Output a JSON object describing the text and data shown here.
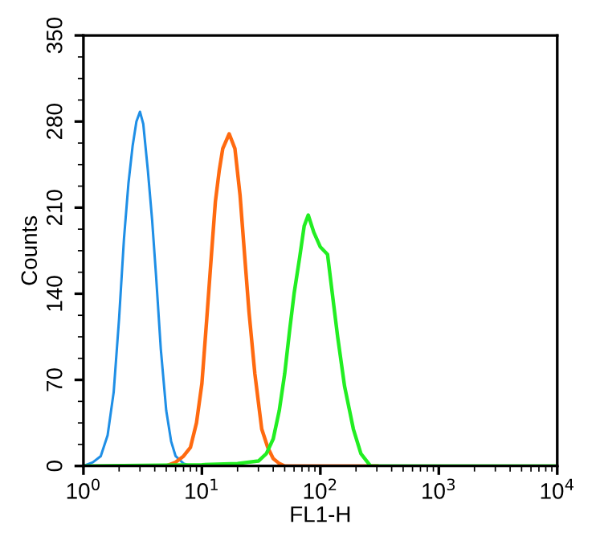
{
  "chart_data": {
    "type": "line",
    "xlabel": "FL1-H",
    "ylabel": "Counts",
    "log": "x",
    "xlim": [
      1,
      10000
    ],
    "xticks": [
      {
        "value": 1,
        "label": "10$^{0}$"
      },
      {
        "value": 10,
        "label": "10$^{1}$"
      },
      {
        "value": 100,
        "label": "10$^{2}$"
      },
      {
        "value": 1000,
        "label": "10$^{3}$"
      },
      {
        "value": 10000,
        "label": "10$^{4}$"
      }
    ],
    "ylim": [
      0,
      350
    ],
    "yticks": [
      0,
      70,
      140,
      210,
      280,
      350
    ],
    "grid": false,
    "legend": false,
    "marker": "none",
    "line_style": "solid",
    "series": [
      {
        "color": "#1f8fe6",
        "x": [
          1.0,
          1.2,
          1.4,
          1.6,
          1.8,
          2.0,
          2.2,
          2.4,
          2.6,
          2.8,
          3.0,
          3.2,
          3.5,
          3.8,
          4.1,
          4.5,
          5.0,
          5.5,
          6.0,
          7.0,
          8.0,
          50
        ],
        "values": [
          0,
          3,
          8,
          25,
          60,
          120,
          185,
          230,
          260,
          280,
          288,
          278,
          240,
          200,
          155,
          95,
          45,
          20,
          8,
          2,
          0,
          0
        ]
      },
      {
        "color": "#ff6a10",
        "x": [
          5,
          6,
          7,
          8,
          9,
          10,
          11,
          12,
          13,
          14,
          15,
          17,
          19,
          21,
          23,
          25,
          28,
          32,
          36,
          40,
          45,
          50,
          300
        ],
        "values": [
          0,
          3,
          8,
          15,
          35,
          67,
          120,
          170,
          215,
          240,
          258,
          270,
          258,
          220,
          170,
          125,
          75,
          30,
          15,
          6,
          2,
          0,
          0
        ]
      },
      {
        "color": "#22ee22",
        "x": [
          1,
          10,
          20,
          30,
          35,
          40,
          45,
          50,
          55,
          60,
          67,
          73,
          79,
          88,
          100,
          115,
          130,
          140,
          160,
          190,
          220,
          265,
          10000
        ],
        "values": [
          0,
          1,
          2,
          4,
          10,
          22,
          45,
          75,
          110,
          140,
          170,
          195,
          204,
          190,
          178,
          172,
          130,
          105,
          65,
          30,
          10,
          0,
          0
        ]
      }
    ]
  }
}
